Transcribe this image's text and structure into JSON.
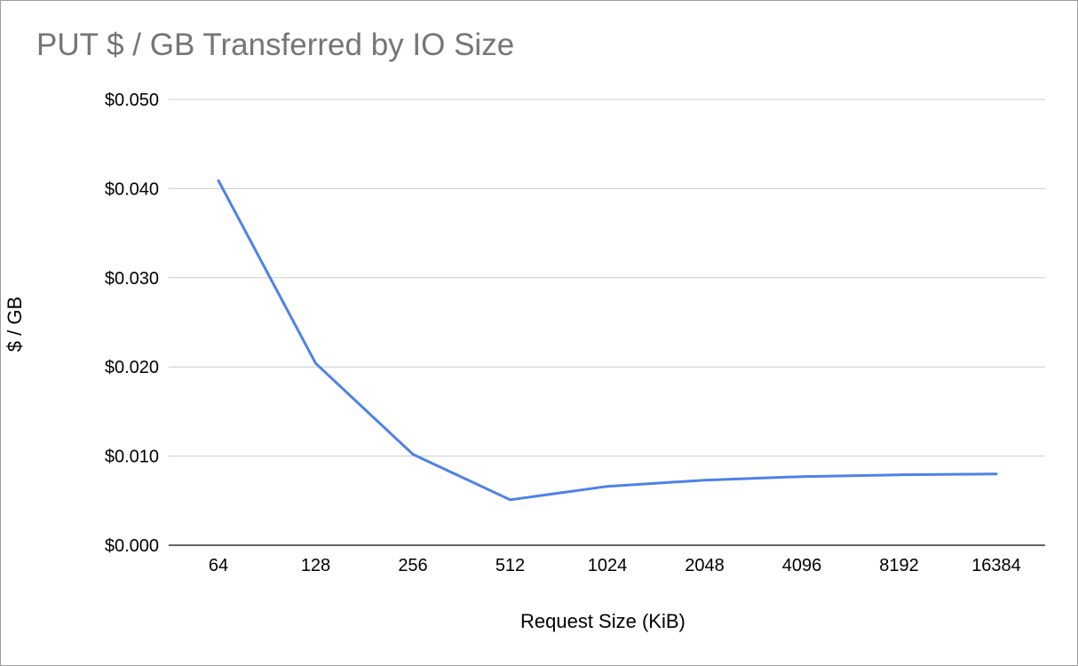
{
  "chart_data": {
    "type": "line",
    "title": "PUT $ / GB Transferred by IO Size",
    "xlabel": "Request Size (KiB)",
    "ylabel": "$ / GB",
    "categories": [
      "64",
      "128",
      "256",
      "512",
      "1024",
      "2048",
      "4096",
      "8192",
      "16384"
    ],
    "series": [
      {
        "values": [
          0.0409,
          0.0204,
          0.0102,
          0.0051,
          0.0066,
          0.0073,
          0.0077,
          0.0079,
          0.008
        ],
        "color": "#4f81e8"
      }
    ],
    "ylim": [
      0,
      0.05
    ],
    "yticks": [
      "$0.000",
      "$0.010",
      "$0.020",
      "$0.030",
      "$0.040",
      "$0.050"
    ],
    "grid": true,
    "legend": "none"
  }
}
